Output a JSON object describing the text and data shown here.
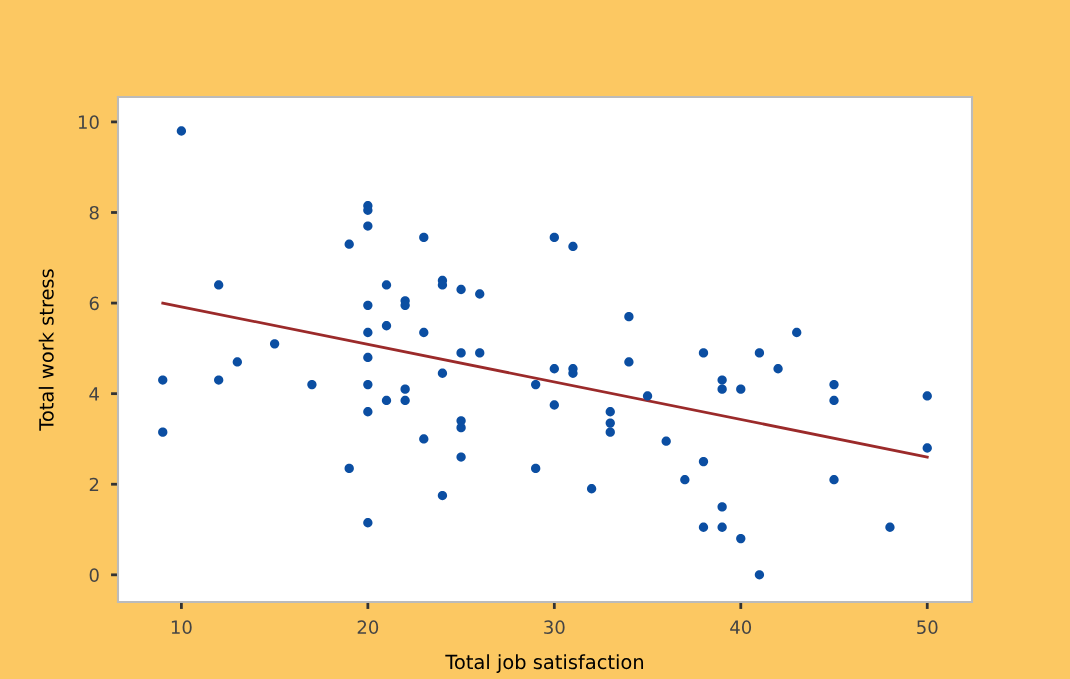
{
  "chart_data": {
    "type": "scatter",
    "xlabel": "Total job satisfaction",
    "ylabel": "Total work stress",
    "xlim": [
      6.6,
      52.4
    ],
    "ylim": [
      -0.6,
      10.55
    ],
    "xticks": [
      10,
      20,
      30,
      40,
      50
    ],
    "yticks": [
      0,
      2,
      4,
      6,
      8,
      10
    ],
    "grid": false,
    "series": [
      {
        "marker": "circle",
        "color": "#0b4ea2",
        "x": [
          9,
          9,
          10,
          12,
          12,
          13,
          15,
          17,
          19,
          19,
          20,
          20,
          20,
          20,
          20,
          20,
          20,
          20,
          20,
          21,
          21,
          21,
          22,
          22,
          22,
          22,
          23,
          23,
          23,
          24,
          24,
          24,
          24,
          25,
          25,
          25,
          25,
          25,
          26,
          26,
          29,
          29,
          30,
          30,
          30,
          31,
          31,
          31,
          32,
          33,
          33,
          33,
          34,
          34,
          35,
          36,
          37,
          38,
          38,
          38,
          39,
          39,
          39,
          39,
          40,
          40,
          41,
          41,
          42,
          43,
          45,
          45,
          45,
          48,
          50,
          50
        ],
        "values": [
          4.3,
          3.15,
          9.8,
          6.4,
          4.3,
          4.7,
          5.1,
          4.2,
          7.3,
          2.35,
          8.15,
          8.05,
          7.7,
          5.95,
          5.35,
          4.8,
          4.2,
          3.6,
          1.15,
          6.4,
          5.5,
          3.85,
          6.05,
          5.95,
          4.1,
          3.85,
          7.45,
          5.35,
          3.0,
          6.5,
          6.4,
          4.45,
          1.75,
          6.3,
          4.9,
          3.4,
          3.25,
          2.6,
          6.2,
          4.9,
          4.2,
          2.35,
          7.45,
          4.55,
          3.75,
          7.25,
          4.55,
          4.45,
          1.9,
          3.6,
          3.35,
          3.15,
          5.7,
          4.7,
          3.95,
          2.95,
          2.1,
          4.9,
          2.5,
          1.05,
          4.3,
          4.1,
          1.5,
          1.05,
          4.1,
          0.8,
          4.9,
          0.0,
          4.55,
          5.35,
          4.2,
          3.85,
          2.1,
          1.05,
          3.95,
          2.8
        ]
      },
      {
        "type": "line",
        "color": "#9b2a2a",
        "x": [
          9,
          50
        ],
        "values": [
          6.0,
          2.6
        ],
        "line_style": "solid"
      }
    ]
  }
}
